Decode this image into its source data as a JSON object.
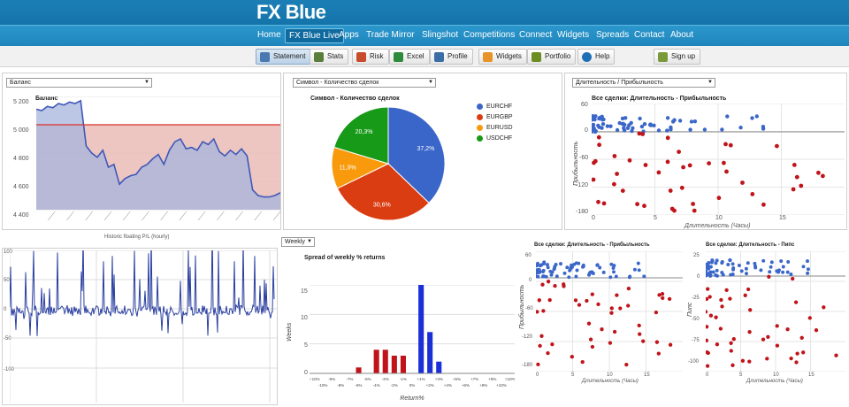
{
  "brand": {
    "logo": "FX Blue"
  },
  "nav": {
    "items": [
      "Home",
      "FX Blue Live",
      "Apps",
      "Trade Mirror",
      "Slingshot",
      "Competitions",
      "Connect",
      "Widgets",
      "Spreads",
      "Contact",
      "About"
    ],
    "active": "FX Blue Live"
  },
  "toolbar": {
    "items": [
      {
        "label": "Statement",
        "icon": "statement-icon",
        "color": "#4a78b0"
      },
      {
        "label": "Stats",
        "icon": "stats-icon",
        "color": "#5a7f3a"
      },
      {
        "label": "Risk",
        "icon": "risk-icon",
        "color": "#c84b2b"
      },
      {
        "label": "Excel",
        "icon": "excel-icon",
        "color": "#2e8b3a"
      },
      {
        "label": "Profile",
        "icon": "profile-icon",
        "color": "#3a6ea5"
      },
      {
        "label": "Widgets",
        "icon": "widgets-icon",
        "color": "#e8932a"
      },
      {
        "label": "Portfolio",
        "icon": "portfolio-icon",
        "color": "#6b8e23"
      },
      {
        "label": "Help",
        "icon": "help-icon",
        "color": "#1f6fb5"
      },
      {
        "label": "Sign up",
        "icon": "signup-icon",
        "color": "#7a9a3a"
      }
    ]
  },
  "panel_balance": {
    "select": "Баланс",
    "chart_title": "Баланс",
    "yticks": [
      "5 200",
      "5 000",
      "4 800",
      "4 600",
      "4 400"
    ],
    "xlabel": "Historic floating P/L (hourly)"
  },
  "panel_pie": {
    "select": "Символ - Количество сделок",
    "chart_title": "Символ - Количество сделок",
    "legend": [
      "EURCHF",
      "EURGBP",
      "EURUSD",
      "USDCHF"
    ],
    "labels": [
      "37,2%",
      "30,6%",
      "11,9%",
      "20,3%"
    ]
  },
  "panel_scatter": {
    "select": "Длительность / Прибыльность",
    "chart_title": "Все сделки: Длительность - Прибыльность",
    "ylabel": "Прибыльность",
    "xlabel": "Длительность (Часы)",
    "yticks": [
      "60",
      "0",
      "-60",
      "-120",
      "-180"
    ],
    "xticks": [
      "0",
      "5",
      "10",
      "15"
    ]
  },
  "panel_weekly": {
    "select": "Weekly",
    "chart_title": "Spread of weekly % returns",
    "ylabel": "Weeks",
    "xlabel": "Return%",
    "yticks": [
      "15",
      "10",
      "5",
      "0"
    ]
  },
  "panel_scatter2": {
    "chart_title": "Все сделки: Длительность - Прибыльность",
    "ylabel": "Прибыльность",
    "xlabel": "Длительность (Часы)",
    "yticks": [
      "60",
      "0",
      "-60",
      "-120",
      "-180"
    ],
    "xticks": [
      "0",
      "5",
      "10",
      "15"
    ]
  },
  "panel_scatter3": {
    "chart_title": "Все сделки: Длительность - Пипс",
    "ylabel": "Пипс",
    "xlabel": "Длительность (Часы)",
    "yticks": [
      "25",
      "0",
      "-25",
      "-50",
      "-75",
      "-100"
    ],
    "xticks": [
      "0",
      "5",
      "10",
      "15"
    ]
  },
  "panel_hourly": {
    "yticks": [
      "100",
      "50",
      "0",
      "-50",
      "-100"
    ]
  },
  "chart_data": [
    {
      "type": "area",
      "title": "Баланс",
      "ylim": [
        4400,
        5200
      ],
      "reference_line": 5000,
      "values": [
        5110,
        5100,
        5130,
        5120,
        5150,
        5140,
        5160,
        5150,
        5170,
        4850,
        4800,
        4770,
        4820,
        4700,
        4720,
        4580,
        4620,
        4640,
        4650,
        4700,
        4720,
        4760,
        4790,
        4720,
        4820,
        4880,
        4900,
        4830,
        4840,
        4820,
        4880,
        4860,
        4900,
        4810,
        4780,
        4820,
        4790,
        4830,
        4780,
        4540,
        4500,
        4490,
        4490,
        4500,
        4520
      ]
    },
    {
      "type": "pie",
      "title": "Символ - Количество сделок",
      "slices": [
        {
          "name": "EURCHF",
          "value": 37.2,
          "color": "#3a66c9"
        },
        {
          "name": "EURGBP",
          "value": 30.6,
          "color": "#db3d12"
        },
        {
          "name": "EURUSD",
          "value": 11.9,
          "color": "#f99a0c"
        },
        {
          "name": "USDCHF",
          "value": 20.3,
          "color": "#189a19"
        }
      ]
    },
    {
      "type": "bar",
      "title": "Spread of weekly % returns",
      "ylabel": "Weeks",
      "xlabel": "Return%",
      "ylim": [
        0,
        15
      ],
      "categories": [
        "<-10%",
        "-10%",
        "-9%",
        "-8%",
        "-7%",
        "-6%",
        "-5%",
        "-4%",
        "-3%",
        "-2%",
        "-1%",
        "0%",
        "+1%",
        "+2%",
        "+3%",
        "+4%",
        "+5%",
        "+6%",
        "+7%",
        "+8%",
        "+9%",
        "+10%",
        ">10%"
      ],
      "values": [
        0,
        0,
        0,
        0,
        0,
        1,
        0,
        4,
        4,
        3,
        3,
        0,
        15,
        7,
        2,
        0,
        0,
        0,
        0,
        0,
        0,
        0,
        0
      ]
    }
  ]
}
